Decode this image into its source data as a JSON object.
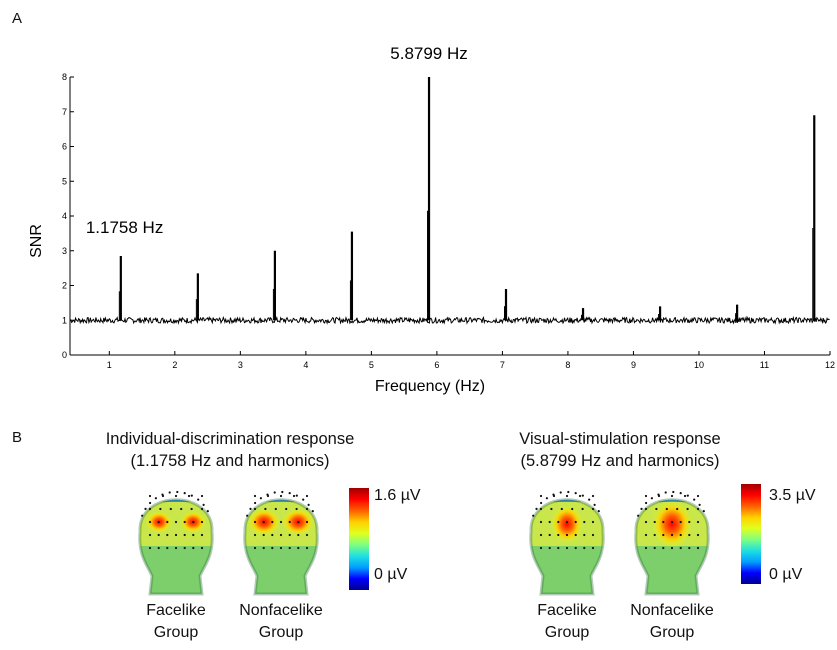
{
  "panel_a": {
    "letter": "A"
  },
  "panel_b": {
    "letter": "B",
    "left": {
      "title_line1": "Individual-discrimination  response",
      "title_line2": "(1.1758 Hz and harmonics)",
      "colorbar_max": "1.6 µV",
      "colorbar_min": "0 µV",
      "heads": [
        {
          "line1": "Facelike",
          "line2": "Group",
          "pattern": "bilateral"
        },
        {
          "line1": "Nonfacelike",
          "line2": "Group",
          "pattern": "bilateral-strong"
        }
      ]
    },
    "right": {
      "title_line1": "Visual-stimulation  response",
      "title_line2": "(5.8799 Hz and harmonics)",
      "colorbar_max": "3.5 µV",
      "colorbar_min": "0 µV",
      "heads": [
        {
          "line1": "Facelike",
          "line2": "Group",
          "pattern": "medial"
        },
        {
          "line1": "Nonfacelike",
          "line2": "Group",
          "pattern": "medial-wide"
        }
      ]
    },
    "colormap": [
      "#00008f",
      "#0000ff",
      "#00a0ff",
      "#20e0e0",
      "#80ff80",
      "#e0ff20",
      "#ffd000",
      "#ff6000",
      "#ff0000",
      "#a00000"
    ]
  },
  "chart_data": {
    "type": "line",
    "xlabel": "Frequency (Hz)",
    "ylabel": "SNR",
    "xlim": [
      0.4,
      12
    ],
    "ylim": [
      0,
      8
    ],
    "xticks": [
      1,
      2,
      3,
      4,
      5,
      6,
      7,
      8,
      9,
      10,
      11,
      12
    ],
    "yticks": [
      0,
      1,
      2,
      3,
      4,
      5,
      6,
      7,
      8
    ],
    "grid": false,
    "baseline": 1.0,
    "peaks": [
      {
        "x": 1.1758,
        "y": 2.85
      },
      {
        "x": 2.3516,
        "y": 2.35
      },
      {
        "x": 3.5274,
        "y": 3.0
      },
      {
        "x": 4.7032,
        "y": 3.55
      },
      {
        "x": 5.8799,
        "y": 8.0
      },
      {
        "x": 7.0548,
        "y": 1.9
      },
      {
        "x": 8.2306,
        "y": 1.35
      },
      {
        "x": 9.4064,
        "y": 1.4
      },
      {
        "x": 10.5822,
        "y": 1.45
      },
      {
        "x": 11.7598,
        "y": 6.9
      }
    ],
    "annotations": [
      {
        "text": "1.1758 Hz",
        "x": 1.1758,
        "y": 2.85
      },
      {
        "text": "5.8799 Hz",
        "x": 5.8799,
        "y": 8.0
      }
    ]
  }
}
